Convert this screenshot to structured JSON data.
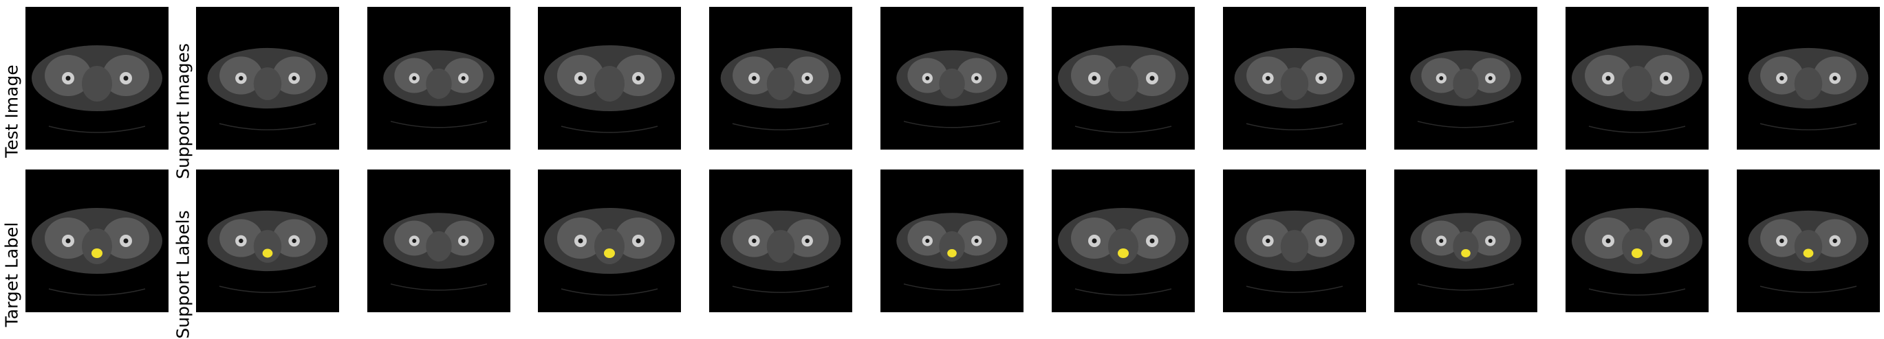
{
  "figure": {
    "row_labels": {
      "test_image": "Test Image",
      "support_images": "Support Images",
      "target_label": "Target Label",
      "support_labels": "Support Labels"
    },
    "rows": [
      {
        "name": "images",
        "panels": [
          {
            "role": "test",
            "label_mask": false
          },
          {
            "role": "support",
            "label_mask": false
          },
          {
            "role": "support",
            "label_mask": false
          },
          {
            "role": "support",
            "label_mask": false
          },
          {
            "role": "support",
            "label_mask": false
          },
          {
            "role": "support",
            "label_mask": false
          },
          {
            "role": "support",
            "label_mask": false
          },
          {
            "role": "support",
            "label_mask": false
          },
          {
            "role": "support",
            "label_mask": false
          },
          {
            "role": "support",
            "label_mask": false
          },
          {
            "role": "support",
            "label_mask": false
          }
        ]
      },
      {
        "name": "labels",
        "panels": [
          {
            "role": "target",
            "label_mask": true
          },
          {
            "role": "support",
            "label_mask": true
          },
          {
            "role": "support",
            "label_mask": false
          },
          {
            "role": "support",
            "label_mask": true
          },
          {
            "role": "support",
            "label_mask": false
          },
          {
            "role": "support",
            "label_mask": true
          },
          {
            "role": "support",
            "label_mask": true
          },
          {
            "role": "support",
            "label_mask": false
          },
          {
            "role": "support",
            "label_mask": true
          },
          {
            "role": "support",
            "label_mask": true
          },
          {
            "role": "support",
            "label_mask": true
          }
        ]
      }
    ],
    "colors": {
      "background": "#ffffff",
      "panel": "#000000",
      "body_outer": "#3a3a3a",
      "body_inner": "#4b4b4b",
      "muscle": "#5a5a5a",
      "bone": "#cfcfcf",
      "bone_core": "#1a1a1a",
      "mask": "#f2e12c"
    }
  }
}
